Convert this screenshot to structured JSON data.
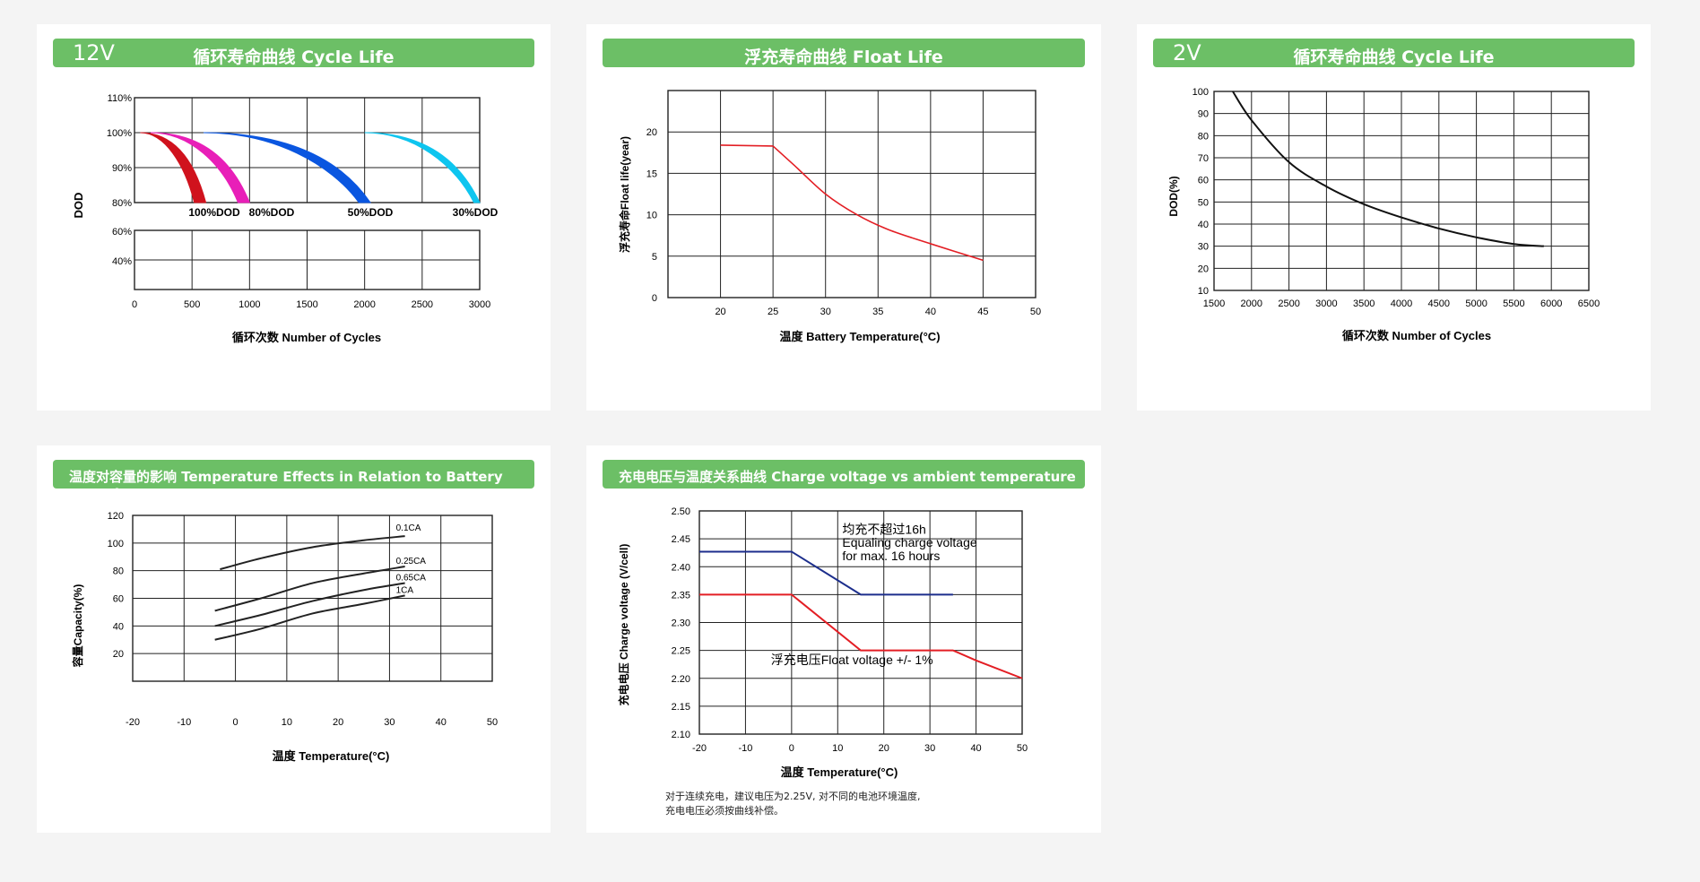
{
  "charts": [
    {
      "header_prefix": "12V",
      "header_title": "循环寿命曲线 Cycle Life",
      "chart_data": {
        "type": "line",
        "title": "循环寿命曲线 Cycle Life",
        "xlabel": "循环次数 Number of Cycles",
        "ylabel": "DOD",
        "xlim": [
          0,
          3000
        ],
        "x_ticks": [
          "0",
          "500",
          "1000",
          "1500",
          "2000",
          "2500",
          "3000"
        ],
        "y_ticks_top": [
          "110%",
          "100%",
          "90%",
          "80%"
        ],
        "y_ticks_bottom": [
          "60%",
          "40%"
        ],
        "grid": true,
        "series": [
          {
            "name": "100%DOD",
            "color": "#d0121d",
            "start": 50,
            "end": [
              520,
              620
            ]
          },
          {
            "name": "80%DOD",
            "color": "#e81fb8",
            "start": 140,
            "end": [
              900,
              1000
            ]
          },
          {
            "name": "50%DOD",
            "color": "#0a56e0",
            "start": 600,
            "end": [
              1950,
              2050
            ]
          },
          {
            "name": "30%DOD",
            "color": "#0ec5ef",
            "start": 2000,
            "end": [
              2950,
              3000
            ]
          }
        ]
      }
    },
    {
      "header_title": "浮充寿命曲线 Float Life",
      "chart_data": {
        "type": "line",
        "title": "浮充寿命曲线 Float Life",
        "xlabel": "温度 Battery Temperature(°C)",
        "ylabel": "浮充寿命Float life(year)",
        "x_ticks": [
          "20",
          "25",
          "30",
          "35",
          "40",
          "45",
          "50"
        ],
        "y_ticks": [
          "0",
          "5",
          "10",
          "15",
          "20"
        ],
        "xlim": [
          15,
          50
        ],
        "ylim": [
          0,
          25
        ],
        "grid": true,
        "series": [
          {
            "color": "#e31e24",
            "x": [
              20,
              25,
              27,
              30,
              33,
              36,
              40,
              45
            ],
            "y": [
              18.4,
              18.3,
              16,
              12.5,
              10,
              8.2,
              6.5,
              4.5
            ]
          }
        ]
      }
    },
    {
      "header_prefix": "2V",
      "header_title": "循环寿命曲线 Cycle Life",
      "chart_data": {
        "type": "line",
        "title": "循环寿命曲线 Cycle Life",
        "xlabel": "循环次数 Number of Cycles",
        "ylabel": "DOD(%)",
        "x_ticks": [
          "1500",
          "2000",
          "2500",
          "3000",
          "3500",
          "4000",
          "4500",
          "5000",
          "5500",
          "6000",
          "6500"
        ],
        "y_ticks": [
          "10",
          "20",
          "30",
          "40",
          "50",
          "60",
          "70",
          "80",
          "90",
          "100"
        ],
        "xlim": [
          1500,
          6500
        ],
        "ylim": [
          10,
          100
        ],
        "grid": true,
        "series": [
          {
            "color": "#111",
            "x": [
              1750,
              2000,
              2500,
              3000,
              3500,
              4000,
              4500,
              5000,
              5500,
              5900
            ],
            "y": [
              100,
              87,
              68,
              57,
              49,
              43,
              38,
              34,
              31,
              30
            ]
          }
        ]
      }
    },
    {
      "header_title": "温度对容量的影响 Temperature Effects in Relation to Battery Capacity",
      "chart_data": {
        "type": "line",
        "title": "温度对容量的影响 Temperature Effects in Relation to Battery Capacity",
        "xlabel": "温度 Temperature(°C)",
        "ylabel": "容量Capacity(%)",
        "x_ticks": [
          "-20",
          "-10",
          "0",
          "10",
          "20",
          "30",
          "40",
          "50"
        ],
        "y_ticks": [
          "20",
          "40",
          "60",
          "80",
          "100",
          "120"
        ],
        "xlim": [
          -20,
          50
        ],
        "ylim": [
          0,
          120
        ],
        "grid": true,
        "series": [
          {
            "name": "0.1CA",
            "color": "#222",
            "x": [
              -3,
              5,
              15,
              25,
              33
            ],
            "y": [
              81,
              89,
              97,
              102,
              105
            ]
          },
          {
            "name": "0.25CA",
            "color": "#222",
            "x": [
              -4,
              5,
              15,
              25,
              33
            ],
            "y": [
              51,
              60,
              71,
              78,
              83
            ]
          },
          {
            "name": "0.65CA",
            "color": "#222",
            "x": [
              -4,
              5,
              15,
              25,
              33
            ],
            "y": [
              40,
              48,
              58,
              66,
              71
            ]
          },
          {
            "name": "1CA",
            "color": "#222",
            "x": [
              -4,
              5,
              15,
              25,
              33
            ],
            "y": [
              30,
              38,
              49,
              56,
              62
            ]
          }
        ]
      }
    },
    {
      "header_title": "充电电压与温度关系曲线 Charge voltage vs ambient temperature curve",
      "chart_data": {
        "type": "line",
        "title": "充电电压与温度关系曲线 Charge voltage vs ambient temperature curve",
        "xlabel": "温度 Temperature(°C)",
        "ylabel": "充电电压 Charge voltage (V/cell)",
        "x_ticks": [
          "-20",
          "-10",
          "0",
          "10",
          "20",
          "30",
          "40",
          "50"
        ],
        "y_ticks": [
          "2.10",
          "2.15",
          "2.20",
          "2.25",
          "2.30",
          "2.35",
          "2.40",
          "2.45",
          "2.50"
        ],
        "xlim": [
          -20,
          50
        ],
        "ylim": [
          2.1,
          2.5
        ],
        "grid": true,
        "series": [
          {
            "color": "#1c2e8c",
            "x": [
              -20,
              0,
              15,
              35
            ],
            "y": [
              2.427,
              2.427,
              2.35,
              2.35
            ]
          },
          {
            "color": "#e31e24",
            "x": [
              -20,
              0,
              15,
              35,
              40,
              50
            ],
            "y": [
              2.35,
              2.35,
              2.25,
              2.25,
              2.232,
              2.2
            ]
          }
        ],
        "annotations": [
          {
            "text": "均充不超过16h",
            "x": 11,
            "y": 2.459
          },
          {
            "text": "Equaling charge voltage",
            "x": 11,
            "y": 2.436
          },
          {
            "text": " for max. 16 hours",
            "x": 11,
            "y": 2.412
          },
          {
            "text": "浮充电压Float voltage +/- 1%",
            "x": -4.5,
            "y": 2.225
          }
        ],
        "footnote": [
          "对于连续充电，建议电压为2.25V, 对不同的电池环境温度,",
          "充电电压必须按曲线补偿。"
        ]
      }
    }
  ]
}
